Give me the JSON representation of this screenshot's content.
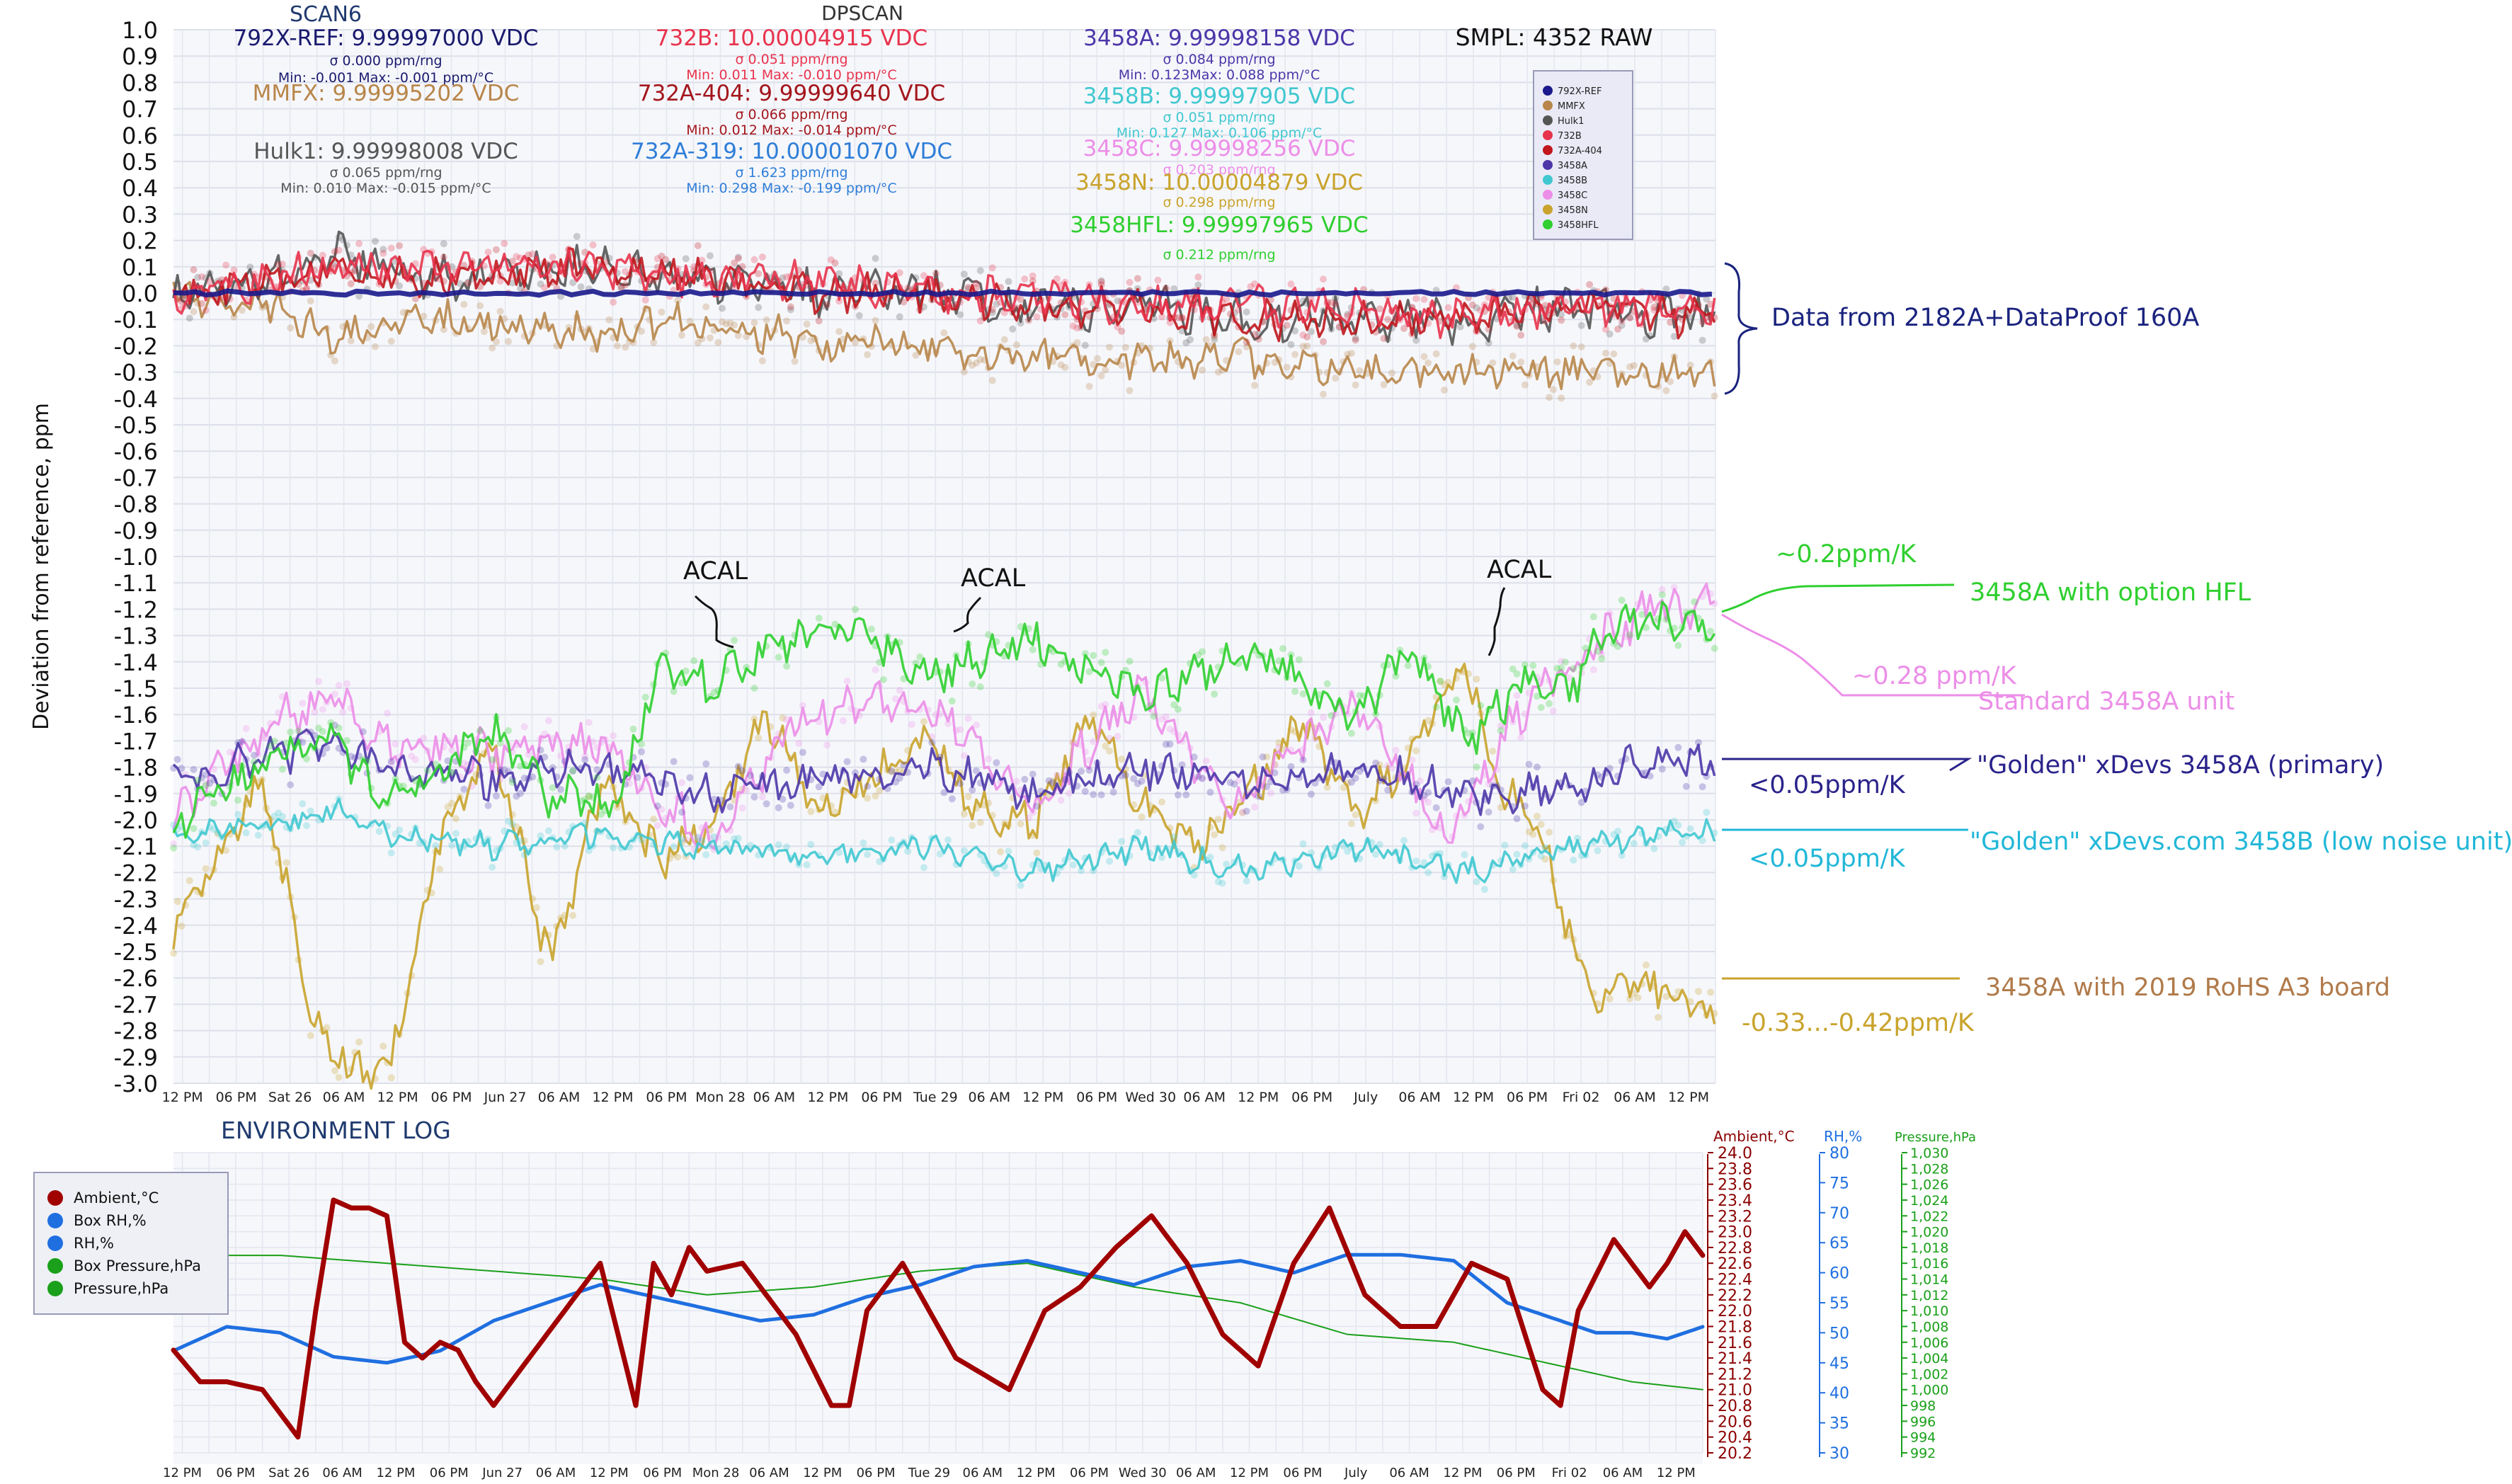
{
  "main_chart": {
    "ylabel": "Deviation from reference, ppm",
    "yticks": [
      "1.0",
      "0.9",
      "0.8",
      "0.7",
      "0.6",
      "0.5",
      "0.4",
      "0.3",
      "0.2",
      "0.1",
      "0.0",
      "-0.1",
      "-0.2",
      "-0.3",
      "-0.4",
      "-0.5",
      "-0.6",
      "-0.7",
      "-0.8",
      "-0.9",
      "-1.0",
      "-1.1",
      "-1.2",
      "-1.3",
      "-1.4",
      "-1.5",
      "-1.6",
      "-1.7",
      "-1.8",
      "-1.9",
      "-2.0",
      "-2.1",
      "-2.2",
      "-2.3",
      "-2.4",
      "-2.5",
      "-2.6",
      "-2.7",
      "-2.8",
      "-2.9",
      "-3.0"
    ],
    "xticks": [
      "12 PM",
      "06 PM",
      "Sat 26",
      "06 AM",
      "12 PM",
      "06 PM",
      "Jun 27",
      "06 AM",
      "12 PM",
      "06 PM",
      "Mon 28",
      "06 AM",
      "12 PM",
      "06 PM",
      "Tue 29",
      "06 AM",
      "12 PM",
      "06 PM",
      "Wed 30",
      "06 AM",
      "12 PM",
      "06 PM",
      "July",
      "06 AM",
      "12 PM",
      "06 PM",
      "Fri 02",
      "06 AM",
      "12 PM"
    ],
    "header": {
      "scan": "SCAN6",
      "dpscan": "DPSCAN",
      "smpl": "SMPL: 4352 RAW",
      "ref_value": "792X-REF: 9.99997000 VDC",
      "ref_sigma": "σ 0.000 ppm/rng",
      "ref_minmax": "Min: -0.001 Max: -0.001 ppm/°C",
      "mmfx_value": "MMFX: 9.99995202 VDC",
      "hulk_value": "Hulk1: 9.99998008 VDC",
      "hulk_sigma": "σ 0.065 ppm/rng",
      "hulk_minmax": "Min: 0.010 Max: -0.015 ppm/°C",
      "b732_value": "732B: 10.00004915 VDC",
      "b732_sigma": "σ 0.051 ppm/rng",
      "b732_minmax": "Min: 0.011 Max: -0.010 ppm/°C",
      "a404_value": "732A-404: 9.99999640 VDC",
      "a404_sigma": "σ 0.066 ppm/rng",
      "a404_minmax": "Min: 0.012 Max: -0.014 ppm/°C",
      "a319_value": "732A-319: 10.00001070 VDC",
      "a319_sigma": "σ 1.623 ppm/rng",
      "a319_minmax": "Min: 0.298 Max: -0.199 ppm/°C",
      "m3458a_value": "3458A: 9.99998158 VDC",
      "m3458a_sigma": "σ 0.084 ppm/rng",
      "m3458a_minmax": "Min: 0.123Max: 0.088 ppm/°C",
      "m3458b_value": "3458B: 9.99997905 VDC",
      "m3458b_sigma": "σ 0.051 ppm/rng",
      "m3458b_minmax": "Min: 0.127 Max: 0.106 ppm/°C",
      "m3458c_value": "3458C: 9.99998256 VDC",
      "m3458c_sigma": "σ 0.203 ppm/rng",
      "m3458n_value": "3458N: 10.00004879 VDC",
      "m3458n_sigma": "σ 0.298 ppm/rng",
      "m3458hfl_value": "3458HFL: 9.99997965 VDC",
      "m3458hfl_sigma": "σ 0.212 ppm/rng"
    },
    "legend": [
      "792X-REF",
      "MMFX",
      "Hulk1",
      "732B",
      "732A-404",
      "3458A",
      "3458B",
      "3458C",
      "3458N",
      "3458HFL"
    ],
    "annotations": {
      "data_from": "Data from 2182A+DataProof 160A",
      "acal1": "ACAL",
      "acal2": "ACAL",
      "acal3": "ACAL",
      "hfl_tc": "~0.2ppm/K",
      "hfl_label": "3458A with option HFL",
      "std_tc": "~0.28 ppm/K",
      "std_label": "Standard 3458A unit",
      "golden_a_label": "\"Golden\" xDevs 3458A (primary)",
      "golden_a_tc": "<0.05ppm/K",
      "golden_b_label": "\"Golden\" xDevs.com 3458B (low noise unit)",
      "golden_b_tc": "<0.05ppm/K",
      "rohs_label": "3458A with 2019 RoHS A3 board",
      "rohs_tc": "-0.33...-0.42ppm/K"
    }
  },
  "env_chart": {
    "title": "ENVIRONMENT LOG",
    "legend": [
      "Ambient,°C",
      "Box RH,%",
      "RH,%",
      "Box Pressure,hPa",
      "Pressure,hPa"
    ],
    "axis_titles": [
      "Ambient,°C",
      "RH,%",
      "Pressure,hPa"
    ],
    "temp_ticks": [
      "24.0",
      "23.8",
      "23.6",
      "23.4",
      "23.2",
      "23.0",
      "22.8",
      "22.6",
      "22.4",
      "22.2",
      "22.0",
      "21.8",
      "21.6",
      "21.4",
      "21.2",
      "21.0",
      "20.8",
      "20.6",
      "20.4",
      "20.2"
    ],
    "rh_ticks": [
      "80",
      "75",
      "70",
      "65",
      "60",
      "55",
      "50",
      "45",
      "40",
      "35",
      "30"
    ],
    "press_ticks": [
      "1,030",
      "1,028",
      "1,026",
      "1,024",
      "1,022",
      "1,020",
      "1,018",
      "1,016",
      "1,014",
      "1,012",
      "1,010",
      "1,008",
      "1,006",
      "1,004",
      "1,002",
      "1,000",
      "998",
      "996",
      "994",
      "992"
    ]
  },
  "chart_data": [
    {
      "type": "scatter",
      "title": "",
      "ylabel": "Deviation from reference, ppm",
      "ylim": [
        -3.0,
        1.0
      ],
      "x_unit": "hours from start (Jun 25 ~11 AM)",
      "xlim": [
        0,
        172
      ],
      "grid": true,
      "legend_position": "top-right",
      "colors": {
        "792X-REF": "#1a1a8c",
        "MMFX": "#b8864a",
        "Hulk1": "#555555",
        "732B": "#e8334d",
        "732A-404": "#c0161c",
        "3458A": "#4c36a8",
        "3458B": "#40c8d0",
        "3458C": "#ec8ee8",
        "3458N": "#c9a32c",
        "3458HFL": "#2fcf2f"
      },
      "series": [
        {
          "name": "792X-REF",
          "x": [
            0,
            60,
            100,
            130,
            150,
            172
          ],
          "y": [
            0.0,
            0.0,
            0.0,
            0.0,
            0.0,
            0.0
          ]
        },
        {
          "name": "MMFX",
          "x": [
            0,
            10,
            18,
            30,
            48,
            60,
            72,
            84,
            96,
            108,
            120,
            132,
            144,
            156,
            172
          ],
          "y": [
            0.0,
            -0.05,
            -0.15,
            -0.1,
            -0.15,
            -0.1,
            -0.2,
            -0.2,
            -0.25,
            -0.25,
            -0.25,
            -0.3,
            -0.3,
            -0.3,
            -0.3
          ]
        },
        {
          "name": "Hulk1",
          "x": [
            0,
            10,
            18,
            30,
            48,
            60,
            72,
            84,
            96,
            108,
            120,
            132,
            144,
            156,
            172
          ],
          "y": [
            0.0,
            0.05,
            0.15,
            0.05,
            0.1,
            0.05,
            0.0,
            0.0,
            -0.05,
            -0.05,
            -0.1,
            -0.1,
            -0.1,
            -0.05,
            -0.1
          ]
        },
        {
          "name": "732B",
          "x": [
            0,
            10,
            18,
            30,
            48,
            60,
            72,
            84,
            96,
            108,
            120,
            132,
            144,
            156,
            172
          ],
          "y": [
            0.0,
            0.05,
            0.1,
            0.1,
            0.1,
            0.05,
            0.05,
            0.0,
            0.0,
            -0.05,
            -0.05,
            -0.05,
            -0.1,
            -0.05,
            -0.05
          ]
        },
        {
          "name": "732A-404",
          "x": [
            0,
            10,
            18,
            30,
            48,
            60,
            72,
            84,
            96,
            108,
            120,
            132,
            144,
            156,
            172
          ],
          "y": [
            0.0,
            0.05,
            0.1,
            0.05,
            0.1,
            0.05,
            0.0,
            0.0,
            -0.05,
            -0.05,
            -0.1,
            -0.1,
            -0.1,
            -0.05,
            -0.1
          ]
        },
        {
          "name": "3458A",
          "x": [
            0,
            12,
            18,
            24,
            36,
            48,
            60,
            72,
            84,
            96,
            108,
            120,
            132,
            144,
            156,
            165,
            172
          ],
          "y": [
            -1.85,
            -1.75,
            -1.7,
            -1.8,
            -1.85,
            -1.8,
            -1.9,
            -1.85,
            -1.8,
            -1.9,
            -1.8,
            -1.85,
            -1.8,
            -1.9,
            -1.9,
            -1.75,
            -1.8
          ]
        },
        {
          "name": "3458B",
          "x": [
            0,
            12,
            18,
            24,
            36,
            48,
            60,
            72,
            84,
            96,
            108,
            120,
            132,
            144,
            156,
            165,
            172
          ],
          "y": [
            -2.05,
            -2.0,
            -1.95,
            -2.05,
            -2.1,
            -2.05,
            -2.1,
            -2.15,
            -2.1,
            -2.2,
            -2.1,
            -2.2,
            -2.1,
            -2.2,
            -2.1,
            -2.05,
            -2.05
          ]
        },
        {
          "name": "3458C",
          "x": [
            0,
            12,
            18,
            24,
            36,
            48,
            60,
            70,
            84,
            96,
            108,
            118,
            132,
            142,
            150,
            158,
            165,
            172
          ],
          "y": [
            -2.0,
            -1.6,
            -1.55,
            -1.7,
            -1.75,
            -1.7,
            -2.1,
            -1.6,
            -1.55,
            -1.95,
            -1.5,
            -1.95,
            -1.55,
            -2.05,
            -1.6,
            -1.35,
            -1.2,
            -1.2
          ]
        },
        {
          "name": "3458N",
          "x": [
            0,
            10,
            16,
            20,
            24,
            30,
            36,
            42,
            48,
            54,
            60,
            66,
            72,
            78,
            84,
            90,
            96,
            102,
            108,
            114,
            120,
            126,
            132,
            138,
            144,
            148,
            152,
            158,
            164,
            172
          ],
          "y": [
            -2.4,
            -1.85,
            -2.8,
            -2.95,
            -2.95,
            -2.0,
            -1.75,
            -2.55,
            -1.85,
            -2.15,
            -2.0,
            -1.6,
            -1.95,
            -1.85,
            -1.7,
            -1.95,
            -2.0,
            -1.6,
            -1.95,
            -2.1,
            -1.9,
            -1.6,
            -2.0,
            -1.75,
            -1.4,
            -1.9,
            -2.0,
            -2.65,
            -2.6,
            -2.75
          ]
        },
        {
          "name": "3458HFL",
          "x": [
            0,
            12,
            18,
            24,
            36,
            42,
            50,
            54,
            60,
            66,
            72,
            78,
            84,
            96,
            108,
            120,
            132,
            138,
            144,
            150,
            156,
            160,
            166,
            172
          ],
          "y": [
            -2.0,
            -1.75,
            -1.7,
            -1.95,
            -1.65,
            -1.9,
            -1.95,
            -1.4,
            -1.5,
            -1.35,
            -1.3,
            -1.3,
            -1.45,
            -1.3,
            -1.55,
            -1.35,
            -1.6,
            -1.35,
            -1.7,
            -1.5,
            -1.5,
            -1.25,
            -1.25,
            -1.25
          ]
        }
      ]
    },
    {
      "type": "line",
      "title": "ENVIRONMENT LOG",
      "x_unit": "hours from start (Jun 25 ~11 AM)",
      "xlim": [
        0,
        172
      ],
      "legend_position": "top-left",
      "axes": {
        "Ambient,°C": [
          20.2,
          24.0
        ],
        "RH,%": [
          30,
          80
        ],
        "Pressure,hPa": [
          992,
          1030
        ]
      },
      "colors": {
        "Ambient,°C": "#a00000",
        "Box RH,%": "#1f6fe0",
        "RH,%": "#1f6fe0",
        "Box Pressure,hPa": "#1aa01a",
        "Pressure,hPa": "#1aa01a"
      },
      "series": [
        {
          "name": "Ambient,°C",
          "x": [
            0,
            3,
            6,
            10,
            14,
            16,
            18,
            20,
            22,
            24,
            26,
            28,
            30,
            32,
            34,
            36,
            40,
            44,
            48,
            52,
            54,
            56,
            58,
            60,
            64,
            70,
            74,
            76,
            78,
            82,
            88,
            94,
            98,
            102,
            106,
            110,
            114,
            118,
            122,
            126,
            130,
            134,
            138,
            142,
            146,
            150,
            154,
            156,
            158,
            162,
            166,
            168,
            170,
            172
          ],
          "y": [
            21.5,
            21.1,
            21.1,
            21.0,
            20.4,
            22.0,
            23.4,
            23.3,
            23.3,
            23.2,
            21.6,
            21.4,
            21.6,
            21.5,
            21.1,
            20.8,
            21.4,
            22.0,
            22.6,
            20.8,
            22.6,
            22.2,
            22.8,
            22.5,
            22.6,
            21.7,
            20.8,
            20.8,
            22.0,
            22.6,
            21.4,
            21.0,
            22.0,
            22.3,
            22.8,
            23.2,
            22.6,
            21.7,
            21.3,
            22.6,
            23.3,
            22.2,
            21.8,
            21.8,
            22.6,
            22.4,
            21.0,
            20.8,
            22.0,
            22.9,
            22.3,
            22.6,
            23.0,
            22.7
          ]
        },
        {
          "name": "RH,%",
          "x": [
            0,
            6,
            12,
            18,
            24,
            30,
            36,
            42,
            48,
            54,
            60,
            66,
            72,
            78,
            84,
            90,
            96,
            102,
            108,
            114,
            120,
            126,
            132,
            138,
            144,
            150,
            156,
            160,
            164,
            168,
            172
          ],
          "y": [
            47,
            51,
            50,
            46,
            45,
            47,
            52,
            55,
            58,
            56,
            54,
            52,
            53,
            56,
            58,
            61,
            62,
            60,
            58,
            61,
            62,
            60,
            63,
            63,
            62,
            55,
            52,
            50,
            50,
            49,
            51
          ]
        },
        {
          "name": "Pressure,hPa",
          "x": [
            0,
            6,
            12,
            24,
            36,
            48,
            60,
            72,
            84,
            96,
            108,
            120,
            132,
            144,
            156,
            164,
            172
          ],
          "y": [
            1019,
            1017,
            1017,
            1016,
            1015,
            1014,
            1012,
            1013,
            1015,
            1016,
            1013,
            1011,
            1007,
            1006,
            1003,
            1001,
            1000
          ]
        }
      ]
    }
  ]
}
